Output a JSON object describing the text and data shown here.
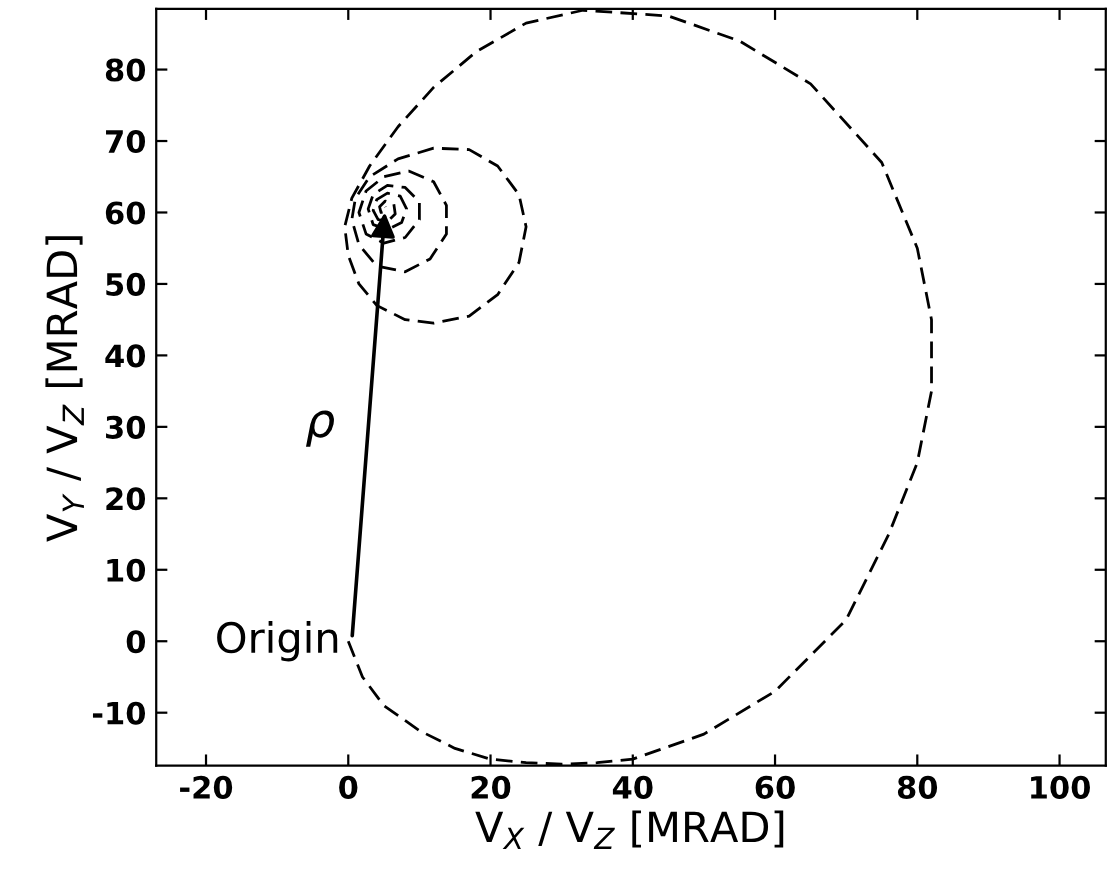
{
  "chart_data": {
    "type": "line",
    "xlabel": "V$_{X}$ / V$_{Z}$ [MRAD]",
    "ylabel": "V$_{Y}$ / V$_{Z}$ [MRAD]",
    "xlim": [
      -27,
      106.5
    ],
    "ylim": [
      -17.4,
      88.5
    ],
    "xticks": [
      -20,
      0,
      20,
      40,
      60,
      80,
      100
    ],
    "yticks": [
      -10,
      0,
      10,
      20,
      30,
      40,
      50,
      60,
      70,
      80
    ],
    "grid": false,
    "marker": "none",
    "annotations": [
      {
        "text": "Origin",
        "x": 0.5,
        "y": 0
      },
      "ρ"
    ],
    "series": [
      {
        "color": "#000000",
        "line_style": "dashed",
        "x": [
          0,
          2,
          5,
          10,
          15,
          20,
          25,
          30,
          35,
          40,
          50,
          60,
          70,
          76,
          80,
          82,
          82,
          80,
          75,
          65,
          55,
          45,
          33,
          25,
          18,
          12,
          7,
          3,
          0.5,
          -0.5,
          0,
          1.5,
          4,
          8,
          12,
          17,
          21,
          24,
          25,
          24,
          21,
          17,
          12,
          7,
          3,
          1,
          0.5,
          1.5,
          4,
          8,
          11.5,
          13.8,
          13.8,
          12,
          8.5,
          5,
          2.5,
          1.5,
          2.5,
          5,
          8,
          10,
          10,
          8,
          5.5,
          3.5,
          2.8,
          3.5,
          5.5,
          7.5,
          8.2,
          7.3,
          5.5,
          4,
          3.5,
          4.2,
          5.6,
          6.6,
          6.4,
          5.2,
          4.4,
          4.6,
          5.4,
          5.2
        ],
        "values": [
          0,
          -5,
          -9,
          -12.5,
          -15,
          -16.5,
          -17,
          -17.2,
          -17,
          -16.5,
          -13,
          -7,
          3,
          15,
          25,
          35,
          45,
          55,
          67,
          78,
          84,
          87.5,
          88.3,
          86.5,
          82.5,
          77.5,
          72,
          66.5,
          62,
          58,
          54,
          50,
          47,
          45,
          44.5,
          45.5,
          48.5,
          53,
          58,
          62.5,
          66.5,
          68.8,
          69,
          67.5,
          65,
          62,
          59,
          55.5,
          52.5,
          51.7,
          53.5,
          57,
          61,
          64.3,
          65.8,
          65,
          63,
          60,
          57,
          55.7,
          56.5,
          59,
          61.5,
          63.5,
          63.8,
          62.5,
          60.5,
          58.3,
          57.6,
          58.6,
          60.5,
          62.3,
          62.7,
          61.8,
          60.3,
          59,
          58.8,
          59.8,
          61.2,
          61.6,
          60.8,
          60,
          60.2,
          60.8
        ]
      }
    ]
  }
}
